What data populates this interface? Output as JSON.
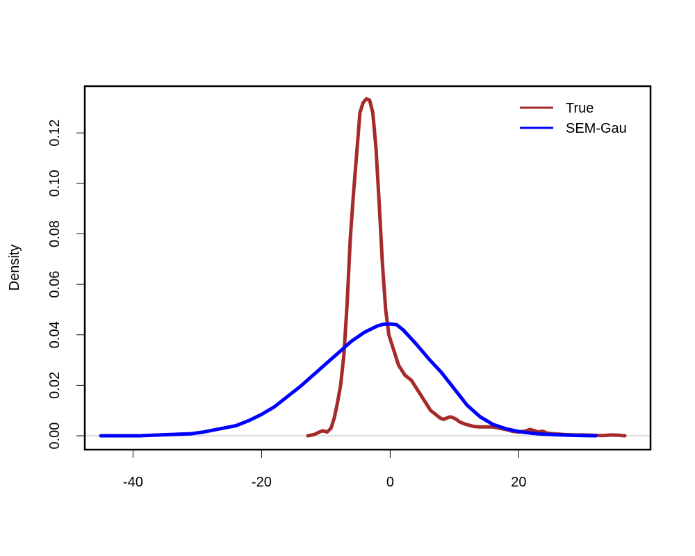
{
  "chart_data": {
    "type": "line",
    "title": "",
    "xlabel": "",
    "ylabel": "Density",
    "xlim": [
      -47.5,
      40.5
    ],
    "ylim": [
      -0.0055,
      0.1385
    ],
    "x_ticks": [
      -40,
      -20,
      0,
      20
    ],
    "y_ticks": [
      0.0,
      0.02,
      0.04,
      0.06,
      0.08,
      0.1,
      0.12
    ],
    "y_tick_labels": [
      "0.00",
      "0.02",
      "0.04",
      "0.06",
      "0.08",
      "0.10",
      "0.12"
    ],
    "x_tick_labels": [
      "-40",
      "-20",
      "0",
      "20"
    ],
    "baseline": 0,
    "grid": false,
    "legend_position": "top-right",
    "series": [
      {
        "name": "True",
        "color": "#A52A2A",
        "x": [
          -12.8,
          -11.8,
          -11.0,
          -10.5,
          -9.8,
          -9.2,
          -8.7,
          -8.2,
          -7.7,
          -7.2,
          -6.7,
          -6.2,
          -5.7,
          -5.2,
          -4.7,
          -4.2,
          -3.7,
          -3.2,
          -2.7,
          -2.2,
          -1.7,
          -1.2,
          -0.7,
          -0.2,
          0.3,
          0.8,
          1.3,
          1.8,
          2.3,
          2.8,
          3.3,
          3.8,
          4.3,
          4.8,
          5.3,
          5.8,
          6.3,
          6.8,
          7.3,
          7.8,
          8.3,
          8.8,
          9.3,
          9.8,
          10.3,
          10.8,
          11.3,
          11.8,
          12.3,
          12.8,
          13.3,
          14.0,
          15.0,
          16.0,
          17.0,
          18.0,
          19.0,
          20.0,
          21.0,
          21.7,
          22.5,
          23.0,
          23.7,
          24.5,
          25.5,
          27.0,
          28.5,
          30.0,
          31.5,
          33.0,
          34.5,
          35.5,
          36.5
        ],
        "values": [
          0.0,
          0.0005,
          0.0015,
          0.002,
          0.0015,
          0.003,
          0.007,
          0.013,
          0.02,
          0.032,
          0.052,
          0.078,
          0.096,
          0.112,
          0.128,
          0.132,
          0.1335,
          0.133,
          0.128,
          0.114,
          0.092,
          0.068,
          0.05,
          0.04,
          0.036,
          0.032,
          0.028,
          0.026,
          0.024,
          0.023,
          0.022,
          0.02,
          0.018,
          0.016,
          0.014,
          0.012,
          0.01,
          0.009,
          0.008,
          0.007,
          0.0065,
          0.007,
          0.0075,
          0.0072,
          0.0065,
          0.0055,
          0.005,
          0.0045,
          0.0042,
          0.0038,
          0.0036,
          0.0035,
          0.0035,
          0.0035,
          0.003,
          0.0025,
          0.0018,
          0.0015,
          0.0018,
          0.0025,
          0.002,
          0.0015,
          0.0018,
          0.001,
          0.0008,
          0.0005,
          0.0003,
          0.0003,
          0.0002,
          0.0001,
          0.0003,
          0.0002,
          0.0
        ]
      },
      {
        "name": "SEM-Gau",
        "color": "#0000FF",
        "x": [
          -45,
          -42,
          -39,
          -36,
          -33,
          -31,
          -29,
          -27,
          -25,
          -24,
          -23,
          -22,
          -20,
          -18,
          -16,
          -14,
          -12,
          -10,
          -8,
          -6,
          -4,
          -2,
          -1,
          0,
          1,
          2,
          4,
          6,
          8,
          10,
          12,
          14,
          16,
          18,
          20,
          22,
          24,
          26,
          28,
          30,
          32
        ],
        "values": [
          0.0,
          0.0,
          0.0,
          0.0003,
          0.0006,
          0.0008,
          0.0015,
          0.0025,
          0.0035,
          0.004,
          0.005,
          0.006,
          0.0085,
          0.0115,
          0.0155,
          0.0195,
          0.024,
          0.0285,
          0.033,
          0.0375,
          0.041,
          0.0435,
          0.0442,
          0.0443,
          0.044,
          0.042,
          0.0365,
          0.0305,
          0.025,
          0.0185,
          0.012,
          0.0075,
          0.0045,
          0.0028,
          0.0017,
          0.001,
          0.0006,
          0.0004,
          0.0002,
          0.0001,
          0.0
        ]
      }
    ]
  }
}
